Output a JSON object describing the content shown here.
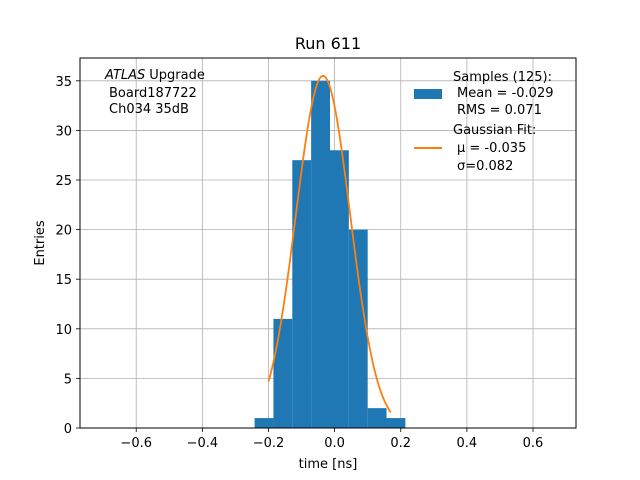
{
  "chart_data": {
    "type": "bar",
    "title": "Run 611",
    "xlabel": "time [ns]",
    "ylabel": "Entries",
    "xlim": [
      -0.77,
      0.73
    ],
    "ylim": [
      0,
      37.3
    ],
    "grid": true,
    "x_ticks": [
      -0.6,
      -0.4,
      -0.2,
      0.0,
      0.2,
      0.4,
      0.6
    ],
    "x_tick_labels": [
      "−0.6",
      "−0.4",
      "−0.2",
      "0.0",
      "0.2",
      "0.4",
      "0.6"
    ],
    "y_ticks": [
      0,
      5,
      10,
      15,
      20,
      25,
      30,
      35
    ],
    "y_tick_labels": [
      "0",
      "5",
      "10",
      "15",
      "20",
      "25",
      "30",
      "35"
    ],
    "histogram": {
      "name": "Samples",
      "bin_edges": [
        -0.242,
        -0.185,
        -0.128,
        -0.071,
        -0.014,
        0.043,
        0.1,
        0.157,
        0.214
      ],
      "counts": [
        1,
        11,
        27,
        35,
        28,
        20,
        2,
        1
      ],
      "color": "#1f77b4"
    },
    "fit": {
      "name": "Gaussian Fit",
      "mu": -0.035,
      "sigma": 0.082,
      "amplitude": 35.5,
      "x_range": [
        -0.2,
        0.17
      ],
      "color": "#ff7f0e"
    },
    "legend": {
      "placement": "top-right",
      "entries": [
        {
          "series": "histogram",
          "lines": [
            "Samples (125):",
            "Mean = -0.029",
            "RMS = 0.071"
          ]
        },
        {
          "series": "fit",
          "lines": [
            "Gaussian Fit:",
            "μ = -0.035",
            "σ=0.082"
          ]
        }
      ]
    },
    "annotation": {
      "placement": "top-left",
      "experiment": "ATLAS",
      "suffix": "Upgrade",
      "lines": [
        "Board187722",
        "Ch034 35dB"
      ]
    }
  }
}
